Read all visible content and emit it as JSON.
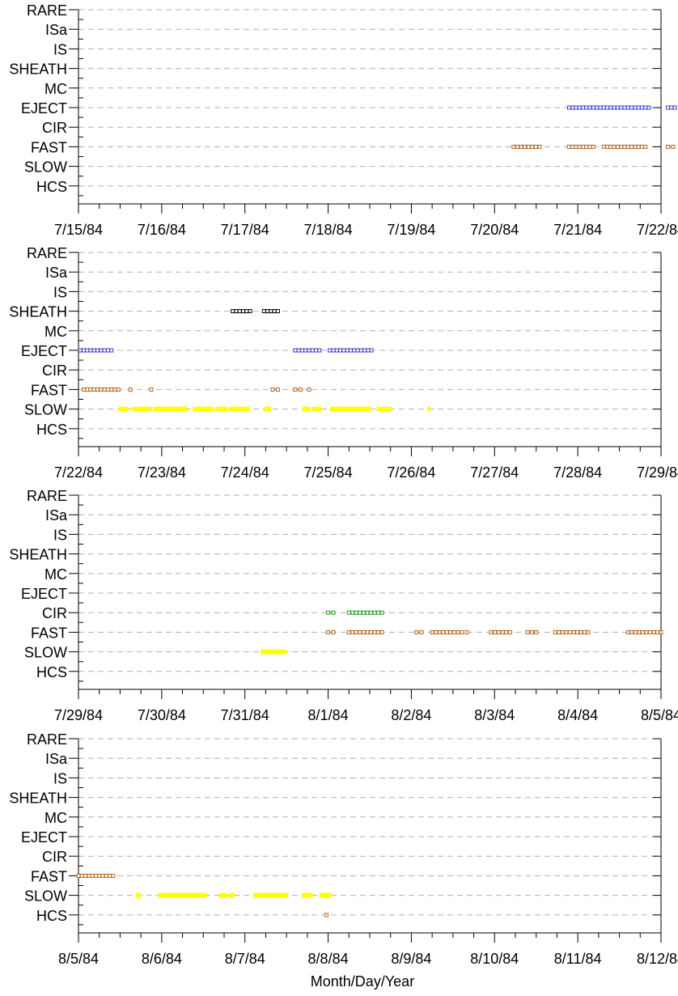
{
  "chart_data": {
    "type": "scatter",
    "xlabel": "Month/Day/Year",
    "categories": [
      "RARE",
      "ISa",
      "IS",
      "SHEATH",
      "MC",
      "EJECT",
      "CIR",
      "FAST",
      "SLOW",
      "HCS"
    ],
    "grid": "dashed horizontal lines at each category",
    "colors": {
      "EJECT": "#3b3bcc",
      "FAST": "#b5651d",
      "SHEATH": "#000000",
      "CIR": "#1e9e1e",
      "SLOW": "#ffff00",
      "HCS": "#b5651d",
      "axis": "#000000",
      "grid": "#b0b0b0"
    },
    "panels": [
      {
        "xlim": [
          "7/15/84",
          "7/22/84"
        ],
        "x_ticks": [
          "7/15/84",
          "7/16/84",
          "7/17/84",
          "7/18/84",
          "7/19/84",
          "7/20/84",
          "7/21/84",
          "7/22/84"
        ],
        "segments": [
          {
            "category": "EJECT",
            "start": "7/20/84 21:30",
            "end": "7/21/84 20:30",
            "style": "markers"
          },
          {
            "category": "EJECT",
            "start": "7/22/84 02:00",
            "end": "7/22/84 04:00",
            "style": "markers"
          },
          {
            "category": "FAST",
            "start": "7/20/84 05:30",
            "end": "7/20/84 13:00",
            "style": "markers"
          },
          {
            "category": "FAST",
            "start": "7/20/84 21:30",
            "end": "7/21/84 04:30",
            "style": "markers"
          },
          {
            "category": "FAST",
            "start": "7/21/84 07:30",
            "end": "7/21/84 14:30",
            "style": "markers"
          },
          {
            "category": "FAST",
            "start": "7/21/84 15:30",
            "end": "7/21/84 19:30",
            "style": "markers"
          },
          {
            "category": "FAST",
            "start": "7/22/84 02:00",
            "end": "7/22/84 03:30",
            "style": "markers"
          }
        ]
      },
      {
        "xlim": [
          "7/22/84",
          "7/29/84"
        ],
        "x_ticks": [
          "7/22/84",
          "7/23/84",
          "7/24/84",
          "7/25/84",
          "7/26/84",
          "7/27/84",
          "7/28/84",
          "7/29/84"
        ],
        "segments": [
          {
            "category": "SHEATH",
            "start": "7/23/84 20:30",
            "end": "7/24/84 01:30",
            "style": "markers"
          },
          {
            "category": "SHEATH",
            "start": "7/24/84 05:30",
            "end": "7/24/84 09:30",
            "style": "markers"
          },
          {
            "category": "EJECT",
            "start": "7/22/84 00:30",
            "end": "7/22/84 09:30",
            "style": "markers"
          },
          {
            "category": "EJECT",
            "start": "7/24/84 14:30",
            "end": "7/24/84 21:30",
            "style": "markers"
          },
          {
            "category": "EJECT",
            "start": "7/25/84 00:30",
            "end": "7/25/84 12:30",
            "style": "markers"
          },
          {
            "category": "FAST",
            "start": "7/22/84 01:30",
            "end": "7/22/84 06:30",
            "style": "markers"
          },
          {
            "category": "FAST",
            "start": "7/22/84 07:30",
            "end": "7/22/84 11:30",
            "style": "markers"
          },
          {
            "category": "FAST",
            "start": "7/22/84 15:00",
            "end": "7/22/84 15:00",
            "style": "markers"
          },
          {
            "category": "FAST",
            "start": "7/22/84 21:00",
            "end": "7/22/84 21:00",
            "style": "markers"
          },
          {
            "category": "FAST",
            "start": "7/24/84 08:00",
            "end": "7/24/84 09:30",
            "style": "markers"
          },
          {
            "category": "FAST",
            "start": "7/24/84 14:30",
            "end": "7/24/84 16:00",
            "style": "markers"
          },
          {
            "category": "FAST",
            "start": "7/24/84 18:30",
            "end": "7/24/84 18:30",
            "style": "markers"
          },
          {
            "category": "SLOW",
            "start": "7/22/84 11:30",
            "end": "7/22/84 14:30",
            "style": "bar"
          },
          {
            "category": "SLOW",
            "start": "7/22/84 15:30",
            "end": "7/22/84 21:00",
            "style": "bar"
          },
          {
            "category": "SLOW",
            "start": "7/22/84 21:30",
            "end": "7/23/84 07:30",
            "style": "bar"
          },
          {
            "category": "SLOW",
            "start": "7/23/84 09:00",
            "end": "7/23/84 15:00",
            "style": "bar"
          },
          {
            "category": "SLOW",
            "start": "7/23/84 15:30",
            "end": "7/23/84 19:00",
            "style": "bar"
          },
          {
            "category": "SLOW",
            "start": "7/23/84 19:30",
            "end": "7/24/84 01:30",
            "style": "bar"
          },
          {
            "category": "SLOW",
            "start": "7/24/84 05:30",
            "end": "7/24/84 07:30",
            "style": "bar"
          },
          {
            "category": "SLOW",
            "start": "7/24/84 16:30",
            "end": "7/24/84 19:00",
            "style": "bar"
          },
          {
            "category": "SLOW",
            "start": "7/24/84 19:30",
            "end": "7/24/84 22:00",
            "style": "bar"
          },
          {
            "category": "SLOW",
            "start": "7/25/84 00:30",
            "end": "7/25/84 12:30",
            "style": "bar"
          },
          {
            "category": "SLOW",
            "start": "7/25/84 14:00",
            "end": "7/25/84 18:30",
            "style": "bar"
          },
          {
            "category": "SLOW",
            "start": "7/26/84 04:30",
            "end": "7/26/84 05:30",
            "style": "bar"
          }
        ]
      },
      {
        "xlim": [
          "7/29/84",
          "8/5/84"
        ],
        "x_ticks": [
          "7/29/84",
          "7/30/84",
          "7/31/84",
          "8/1/84",
          "8/2/84",
          "8/3/84",
          "8/4/84",
          "8/5/84"
        ],
        "segments": [
          {
            "category": "CIR",
            "start": "8/1/84 00:00",
            "end": "8/1/84 01:30",
            "style": "markers"
          },
          {
            "category": "CIR",
            "start": "8/1/84 06:00",
            "end": "8/1/84 15:30",
            "style": "markers"
          },
          {
            "category": "FAST",
            "start": "8/1/84 00:00",
            "end": "8/1/84 01:30",
            "style": "markers"
          },
          {
            "category": "FAST",
            "start": "8/1/84 06:00",
            "end": "8/1/84 15:30",
            "style": "markers"
          },
          {
            "category": "FAST",
            "start": "8/2/84 01:30",
            "end": "8/2/84 03:00",
            "style": "markers"
          },
          {
            "category": "FAST",
            "start": "8/2/84 06:00",
            "end": "8/2/84 14:30",
            "style": "markers"
          },
          {
            "category": "FAST",
            "start": "8/2/84 16:00",
            "end": "8/2/84 16:00",
            "style": "markers"
          },
          {
            "category": "FAST",
            "start": "8/2/84 23:00",
            "end": "8/3/84 04:30",
            "style": "markers"
          },
          {
            "category": "FAST",
            "start": "8/3/84 09:30",
            "end": "8/3/84 12:00",
            "style": "markers"
          },
          {
            "category": "FAST",
            "start": "8/3/84 17:30",
            "end": "8/4/84 03:00",
            "style": "markers"
          },
          {
            "category": "FAST",
            "start": "8/4/84 14:30",
            "end": "8/5/84 00:00",
            "style": "markers"
          },
          {
            "category": "SLOW",
            "start": "7/31/84 04:30",
            "end": "7/31/84 12:00",
            "style": "bar"
          }
        ]
      },
      {
        "xlim": [
          "8/5/84",
          "8/12/84"
        ],
        "x_ticks": [
          "8/5/84",
          "8/6/84",
          "8/7/84",
          "8/8/84",
          "8/9/84",
          "8/10/84",
          "8/11/84",
          "8/12/84"
        ],
        "segments": [
          {
            "category": "FAST",
            "start": "8/5/84 00:00",
            "end": "8/5/84 10:00",
            "style": "markers"
          },
          {
            "category": "SLOW",
            "start": "8/5/84 16:30",
            "end": "8/5/84 18:00",
            "style": "bar"
          },
          {
            "category": "SLOW",
            "start": "8/5/84 23:00",
            "end": "8/6/84 13:00",
            "style": "bar"
          },
          {
            "category": "SLOW",
            "start": "8/6/84 16:30",
            "end": "8/6/84 19:00",
            "style": "bar"
          },
          {
            "category": "SLOW",
            "start": "8/6/84 19:30",
            "end": "8/6/84 21:00",
            "style": "bar"
          },
          {
            "category": "SLOW",
            "start": "8/7/84 02:30",
            "end": "8/7/84 12:30",
            "style": "bar"
          },
          {
            "category": "SLOW",
            "start": "8/7/84 16:30",
            "end": "8/7/84 19:30",
            "style": "bar"
          },
          {
            "category": "SLOW",
            "start": "8/7/84 21:30",
            "end": "8/8/84 01:00",
            "style": "bar"
          },
          {
            "category": "HCS",
            "start": "8/7/84 23:30",
            "end": "8/7/84 23:30",
            "style": "markers"
          }
        ]
      }
    ]
  }
}
